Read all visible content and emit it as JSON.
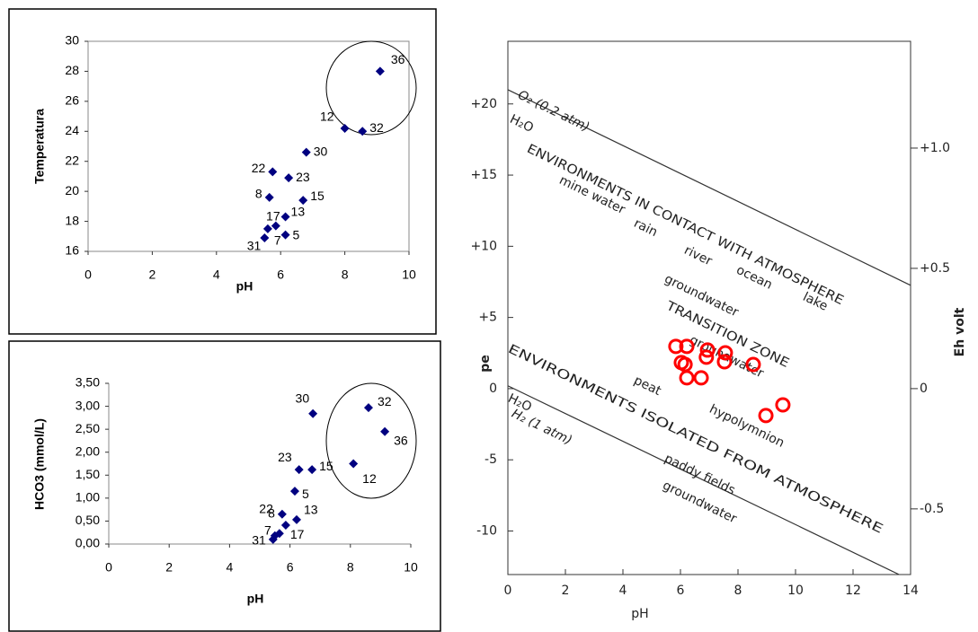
{
  "chart_data": [
    {
      "type": "scatter",
      "ylabel": "Temperatura",
      "xlabel": "pH",
      "color": "#000080",
      "marker": "diamond",
      "xlim": [
        0,
        10
      ],
      "xticks": [
        0,
        2,
        4,
        6,
        8,
        10
      ],
      "ylim": [
        16,
        30
      ],
      "yticks": [
        16,
        18,
        20,
        22,
        24,
        26,
        28,
        30
      ],
      "point_labels": [
        "36",
        "12",
        "32",
        "30",
        "22",
        "23",
        "8",
        "15",
        "13",
        "17",
        "7",
        "5",
        "31"
      ],
      "x": [
        9.1,
        8.0,
        8.55,
        6.8,
        5.75,
        6.25,
        5.65,
        6.7,
        6.15,
        5.85,
        5.6,
        6.15,
        5.5
      ],
      "values": [
        28.0,
        24.2,
        24.0,
        22.6,
        21.3,
        20.9,
        19.6,
        19.4,
        18.3,
        17.7,
        17.5,
        17.1,
        16.9
      ]
    },
    {
      "type": "scatter",
      "ylabel": "HCO3 (mmol/L)",
      "xlabel": "pH",
      "color": "#000080",
      "marker": "diamond",
      "xlim": [
        0,
        10
      ],
      "xticks": [
        0,
        2,
        4,
        6,
        8,
        10
      ],
      "ylim": [
        0,
        3.5
      ],
      "yticks": [
        {
          "value": 0,
          "label": "0,00"
        },
        {
          "value": 0.5,
          "label": "0,50"
        },
        {
          "value": 1,
          "label": "1,00"
        },
        {
          "value": 1.5,
          "label": "1,50"
        },
        {
          "value": 2,
          "label": "2,00"
        },
        {
          "value": 2.5,
          "label": "2,50"
        },
        {
          "value": 3,
          "label": "3,00"
        },
        {
          "value": 3.5,
          "label": "3,50"
        }
      ],
      "point_labels": [
        "30",
        "32",
        "36",
        "12",
        "23",
        "15",
        "5",
        "22",
        "13",
        "8",
        "17",
        "7",
        "31"
      ],
      "x": [
        6.76,
        8.6,
        9.14,
        8.1,
        6.3,
        6.73,
        6.16,
        5.74,
        6.22,
        5.86,
        5.65,
        5.5,
        5.44
      ],
      "values": [
        2.84,
        2.97,
        2.45,
        1.75,
        1.62,
        1.62,
        1.15,
        0.65,
        0.53,
        0.41,
        0.23,
        0.18,
        0.1
      ]
    },
    {
      "type": "scatter",
      "ylabel": "pe",
      "y2label": "Eh volt",
      "xlabel": "pH",
      "color": "#ff0000",
      "marker": "open-circle",
      "xlim": [
        0,
        14
      ],
      "xticks": [
        0,
        2,
        4,
        6,
        8,
        10,
        12,
        14
      ],
      "ylim": [
        -13.06,
        24.4
      ],
      "yticks": [
        {
          "value": 20,
          "label": "+20"
        },
        {
          "value": 15,
          "label": "+15"
        },
        {
          "value": 10,
          "label": "+10"
        },
        {
          "value": 5,
          "label": "+5"
        },
        0,
        -5,
        -10
      ],
      "y2lim": [
        -0.773,
        1.444
      ],
      "y2ticks": [
        {
          "value": 1.0,
          "label": "+1.0"
        },
        {
          "value": 0.5,
          "label": "+0.5"
        },
        0,
        -0.5
      ],
      "x": [
        5.84,
        6.22,
        6.94,
        7.56,
        6.9,
        6.03,
        7.53,
        8.53,
        6.16,
        6.22,
        6.72,
        8.97,
        9.56
      ],
      "values": [
        2.97,
        2.97,
        2.71,
        2.52,
        2.21,
        1.83,
        1.89,
        1.7,
        1.7,
        0.76,
        0.76,
        -1.89,
        -1.14
      ],
      "lines": [
        {
          "label": "O₂ (0.2 atm)",
          "x": [
            0,
            14
          ],
          "y": [
            21.0,
            7.26
          ]
        },
        {
          "label": "H₂ (1 atm)",
          "x": [
            0,
            13.6
          ],
          "y": [
            0.2,
            -13.06
          ]
        }
      ],
      "annotations": [
        "H₂O",
        "ENVIRONMENTS IN CONTACT WITH ATMOSPHERE",
        "mine water",
        "rain",
        "river",
        "ocean",
        "lake",
        "groundwater",
        "TRANSITION ZONE",
        "groundwater",
        "peat",
        "hypolymnion",
        "ENVIRONMENTS ISOLATED FROM ATMOSPHERE",
        "H₂O",
        "paddy fields",
        "groundwater"
      ]
    }
  ]
}
